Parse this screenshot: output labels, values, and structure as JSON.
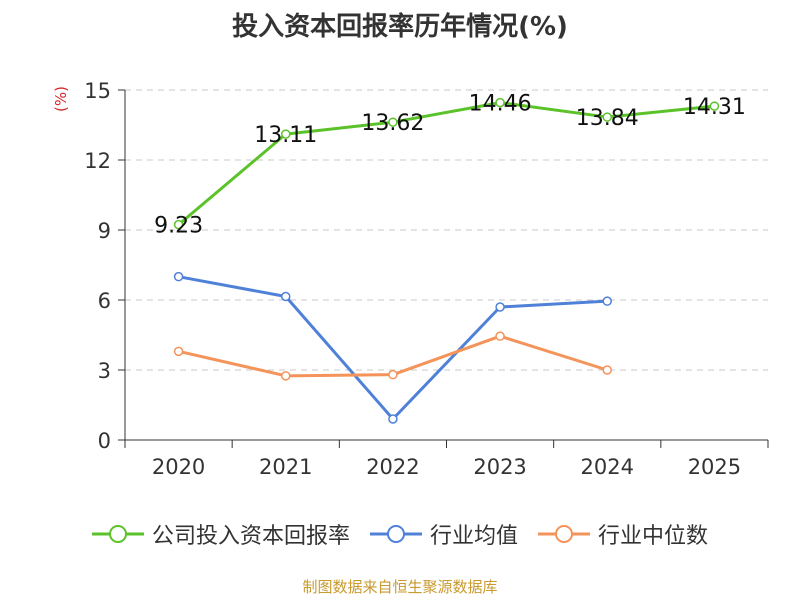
{
  "chart_data": {
    "type": "line",
    "title": "投入资本回报率历年情况(%)",
    "ylabel": "(%)",
    "xlabel": "",
    "categories": [
      "2020",
      "2021",
      "2022",
      "2023",
      "2024",
      "2025"
    ],
    "ylim": [
      0,
      15
    ],
    "yticks": [
      0,
      3,
      6,
      9,
      12,
      15
    ],
    "grid": true,
    "legend_position": "bottom",
    "series": [
      {
        "name": "公司投入资本回报率",
        "color": "#5bc22a",
        "values": [
          9.23,
          13.11,
          13.62,
          14.46,
          13.84,
          14.31
        ],
        "labels": [
          "9.23",
          "13.11",
          "13.62",
          "14.46",
          "13.84",
          "14.31"
        ]
      },
      {
        "name": "行业均值",
        "color": "#4f81d8",
        "values": [
          7.0,
          6.15,
          0.9,
          5.7,
          5.95,
          null
        ]
      },
      {
        "name": "行业中位数",
        "color": "#f4935a",
        "values": [
          3.8,
          2.75,
          2.8,
          4.45,
          3.0,
          null
        ]
      }
    ]
  },
  "source": "制图数据来自恒生聚源数据库"
}
